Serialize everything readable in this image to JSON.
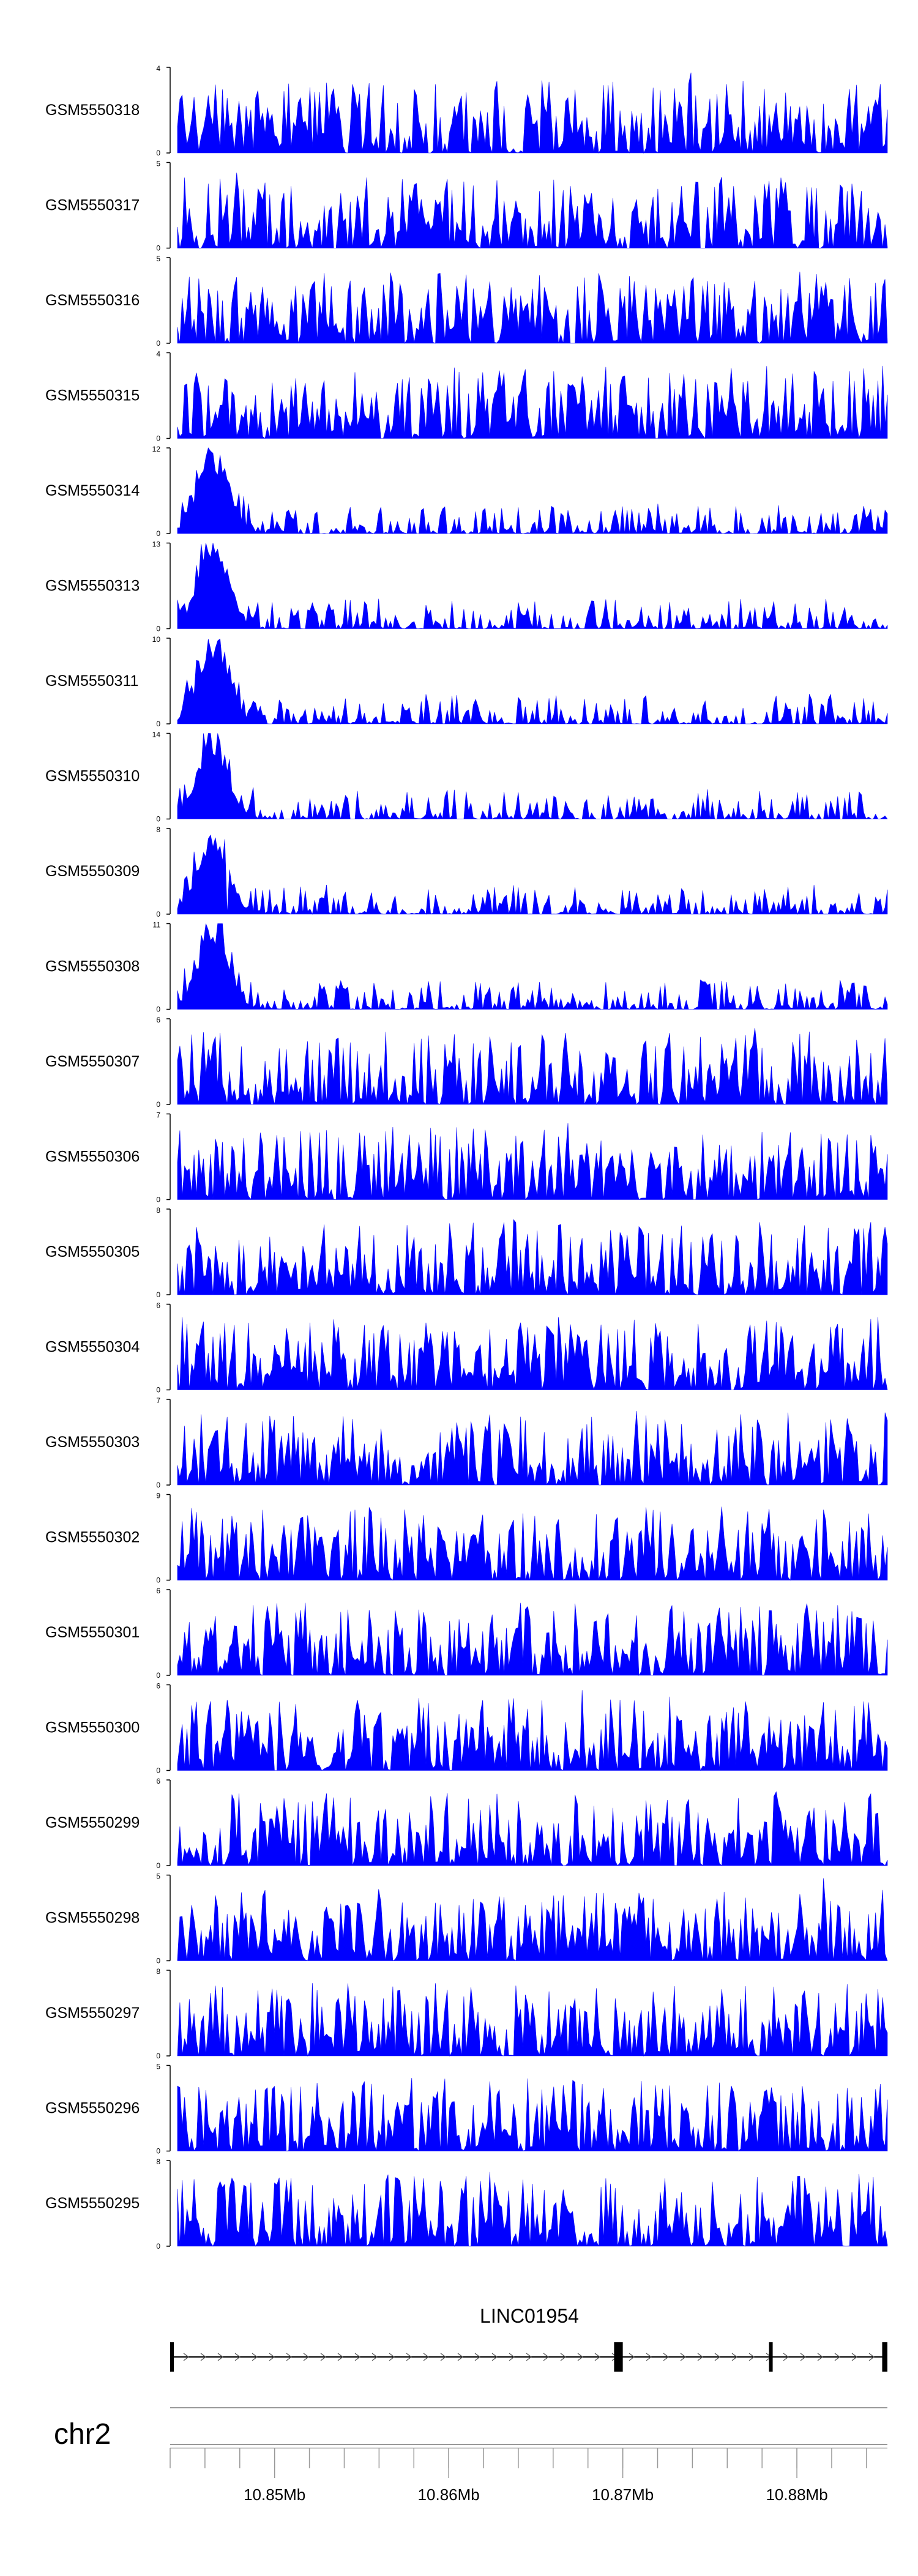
{
  "tracks": [
    {
      "name": "GSM5550318",
      "ymax": "4",
      "ymin": "0",
      "peak_x": [],
      "seed": 318
    },
    {
      "name": "GSM5550317",
      "ymax": "5",
      "ymin": "0",
      "seed": 317
    },
    {
      "name": "GSM5550316",
      "ymax": "5",
      "ymin": "0",
      "seed": 316
    },
    {
      "name": "GSM5550315",
      "ymax": "4",
      "ymin": "0",
      "seed": 315
    },
    {
      "name": "GSM5550314",
      "ymax": "12",
      "ymin": "0",
      "seed": 314,
      "early_peak": true
    },
    {
      "name": "GSM5550313",
      "ymax": "13",
      "ymin": "0",
      "seed": 313,
      "early_peak": true
    },
    {
      "name": "GSM5550311",
      "ymax": "10",
      "ymin": "0",
      "seed": 311,
      "early_peak": true
    },
    {
      "name": "GSM5550310",
      "ymax": "14",
      "ymin": "0",
      "seed": 310,
      "early_peak": true
    },
    {
      "name": "GSM5550309",
      "ymax": "8",
      "ymin": "0",
      "seed": 309,
      "early_peak": true
    },
    {
      "name": "GSM5550308",
      "ymax": "11",
      "ymin": "0",
      "seed": 308,
      "early_peak": true
    },
    {
      "name": "GSM5550307",
      "ymax": "6",
      "ymin": "0",
      "seed": 307
    },
    {
      "name": "GSM5550306",
      "ymax": "7",
      "ymin": "0",
      "seed": 306
    },
    {
      "name": "GSM5550305",
      "ymax": "8",
      "ymin": "0",
      "seed": 305
    },
    {
      "name": "GSM5550304",
      "ymax": "6",
      "ymin": "0",
      "seed": 304
    },
    {
      "name": "GSM5550303",
      "ymax": "7",
      "ymin": "0",
      "seed": 303
    },
    {
      "name": "GSM5550302",
      "ymax": "9",
      "ymin": "0",
      "seed": 302
    },
    {
      "name": "GSM5550301",
      "ymax": "6",
      "ymin": "0",
      "seed": 301
    },
    {
      "name": "GSM5550300",
      "ymax": "6",
      "ymin": "0",
      "seed": 300
    },
    {
      "name": "GSM5550299",
      "ymax": "6",
      "ymin": "0",
      "seed": 299
    },
    {
      "name": "GSM5550298",
      "ymax": "5",
      "ymin": "0",
      "seed": 298
    },
    {
      "name": "GSM5550297",
      "ymax": "8",
      "ymin": "0",
      "seed": 297
    },
    {
      "name": "GSM5550296",
      "ymax": "5",
      "ymin": "0",
      "seed": 296
    },
    {
      "name": "GSM5550295",
      "ymax": "8",
      "ymin": "0",
      "seed": 295
    }
  ],
  "colors": {
    "signal": "#0000ff",
    "axis": "#000000",
    "gene": "#000000",
    "ideogram": "#999999"
  },
  "gene": {
    "name": "LINC01954",
    "strand": "+",
    "exons_mb": [
      [
        10.844,
        10.8442
      ],
      [
        10.8695,
        10.87
      ],
      [
        10.8784,
        10.8786
      ],
      [
        10.8849,
        10.8852
      ]
    ]
  },
  "chromosome": {
    "name": "chr2",
    "region_mb": [
      10.844,
      10.8852
    ],
    "tick_labels": [
      "10.85Mb",
      "10.86Mb",
      "10.87Mb",
      "10.88Mb"
    ],
    "tick_values_mb": [
      10.85,
      10.86,
      10.87,
      10.88
    ],
    "minor_tick_step_mb": 0.002
  }
}
